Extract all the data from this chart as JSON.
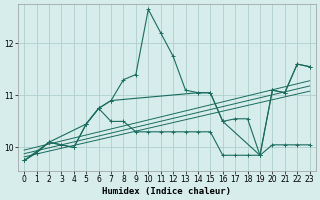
{
  "xlabel": "Humidex (Indice chaleur)",
  "bg_color": "#d6edec",
  "grid_color": "#aecfcc",
  "line_color": "#1a6b5e",
  "xlim": [
    -0.5,
    23.5
  ],
  "ylim": [
    9.55,
    12.75
  ],
  "yticks": [
    10,
    11,
    12
  ],
  "xticks": [
    0,
    1,
    2,
    3,
    4,
    5,
    6,
    7,
    8,
    9,
    10,
    11,
    12,
    13,
    14,
    15,
    16,
    17,
    18,
    19,
    20,
    21,
    22,
    23
  ],
  "series_main_x": [
    0,
    1,
    2,
    3,
    4,
    5,
    6,
    7,
    8,
    9,
    10,
    11,
    12,
    13,
    14,
    15,
    16,
    17,
    18,
    19,
    20,
    21,
    22,
    23
  ],
  "series_main_y": [
    9.75,
    9.9,
    10.1,
    10.05,
    10.0,
    10.45,
    10.75,
    10.9,
    11.3,
    11.4,
    12.65,
    12.2,
    11.75,
    11.1,
    11.05,
    11.05,
    10.5,
    10.55,
    10.55,
    9.85,
    11.1,
    11.05,
    11.6,
    11.55
  ],
  "series_flat_x": [
    0,
    1,
    2,
    3,
    4,
    5,
    6,
    7,
    8,
    9,
    10,
    11,
    12,
    13,
    14,
    15,
    16,
    17,
    18,
    19,
    20,
    21,
    22,
    23
  ],
  "series_flat_y": [
    9.75,
    9.9,
    10.1,
    10.05,
    10.0,
    10.45,
    10.75,
    10.5,
    10.5,
    10.3,
    10.3,
    10.3,
    10.3,
    10.3,
    10.3,
    10.3,
    9.85,
    9.85,
    9.85,
    9.85,
    10.05,
    10.05,
    10.05,
    10.05
  ],
  "series_sparse_x": [
    0,
    2,
    5,
    6,
    7,
    14,
    15,
    16,
    19,
    20,
    21,
    22,
    23
  ],
  "series_sparse_y": [
    9.75,
    10.1,
    10.45,
    10.75,
    10.9,
    11.05,
    11.05,
    10.5,
    9.85,
    11.1,
    11.05,
    11.6,
    11.55
  ],
  "trend1_x": [
    0,
    23
  ],
  "trend1_y": [
    9.82,
    11.08
  ],
  "trend2_x": [
    0,
    23
  ],
  "trend2_y": [
    9.88,
    11.18
  ],
  "trend3_x": [
    0,
    23
  ],
  "trend3_y": [
    9.95,
    11.28
  ]
}
